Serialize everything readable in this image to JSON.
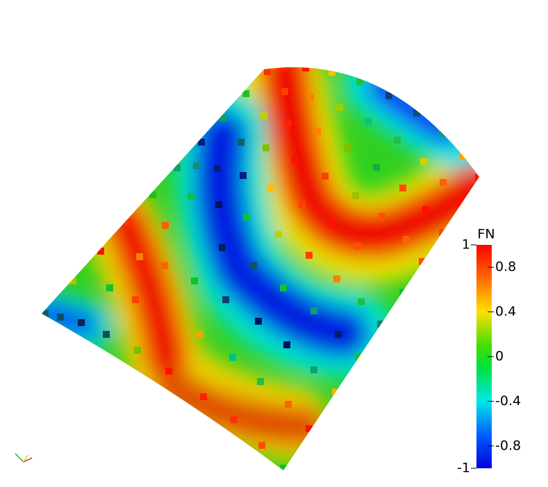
{
  "colorbar": {
    "title": "FN",
    "range": [
      -1,
      1
    ],
    "ticks": [
      1,
      0.8,
      0.4,
      0,
      -0.4,
      -0.8,
      -1
    ]
  }
}
